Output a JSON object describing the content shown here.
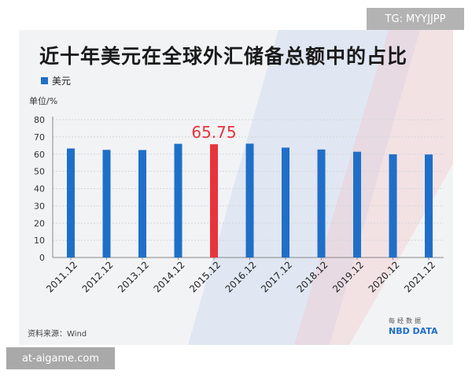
{
  "watermark_top": "TG: MYYJJPP",
  "watermark_bottom": "at-aigame.com",
  "source_note": "资料来源：Wind",
  "logo": {
    "chinese": "每经数据",
    "english": "NBD DATA"
  },
  "colors": {
    "bar": "#1f6fc8",
    "highlight": "#e8343c"
  },
  "chart_data": {
    "type": "bar",
    "title": "近十年美元在全球外汇储备总额中的占比",
    "ylabel": "单位/%",
    "xlabel": "",
    "categories": [
      "2011.12",
      "2012.12",
      "2013.12",
      "2014.12",
      "2015.12",
      "2016.12",
      "2017.12",
      "2018.12",
      "2019.12",
      "2020.12",
      "2021.12"
    ],
    "series": [
      {
        "name": "美元",
        "values": [
          63.3,
          62.5,
          62.4,
          66.0,
          65.75,
          66.1,
          63.8,
          62.7,
          61.4,
          59.9,
          59.8
        ]
      }
    ],
    "highlight_index": 4,
    "highlight_label": "65.75",
    "ylim": [
      0,
      80
    ],
    "yticks": [
      0,
      10,
      20,
      30,
      40,
      50,
      60,
      70,
      80
    ],
    "grid": true,
    "legend_position": "top-left"
  }
}
